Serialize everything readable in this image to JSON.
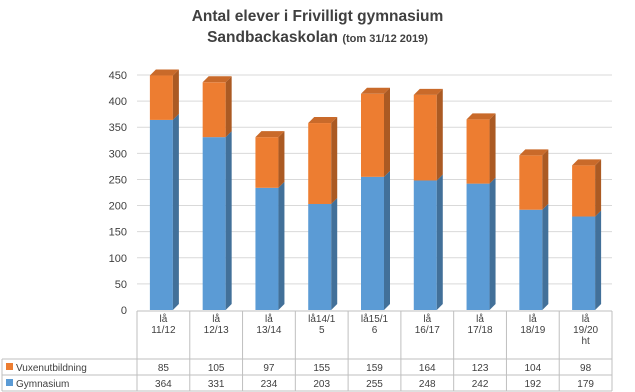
{
  "chart_data": {
    "type": "bar",
    "stacked": true,
    "style": "3d-column",
    "title": "Antal elever i Frivilligt gymnasium",
    "subtitle_main": "Sandbackaskolan",
    "subtitle_note": "(tom 31/12 2019)",
    "categories": [
      [
        "lå",
        "11/12"
      ],
      [
        "lå",
        "12/13"
      ],
      [
        "lå",
        "13/14"
      ],
      [
        "lå14/1",
        "5"
      ],
      [
        "lå15/1",
        "6"
      ],
      [
        "lå",
        "16/17"
      ],
      [
        "lå",
        "17/18"
      ],
      [
        "lå",
        "18/19"
      ],
      [
        "lå",
        "19/20",
        "ht"
      ]
    ],
    "series": [
      {
        "name": "Vuxenutbildning",
        "color": "#ED7D31",
        "values": [
          85,
          105,
          97,
          155,
          159,
          164,
          123,
          104,
          98
        ]
      },
      {
        "name": "Gymnasium",
        "color": "#5B9BD5",
        "values": [
          364,
          331,
          234,
          203,
          255,
          248,
          242,
          192,
          179
        ]
      }
    ],
    "stack_order_bottom_to_top": [
      "Gymnasium",
      "Vuxenutbildning"
    ],
    "ylim": [
      0,
      450
    ],
    "yticks": [
      0,
      50,
      100,
      150,
      200,
      250,
      300,
      350,
      400,
      450
    ],
    "grid": true,
    "legend": "data-table-below"
  }
}
